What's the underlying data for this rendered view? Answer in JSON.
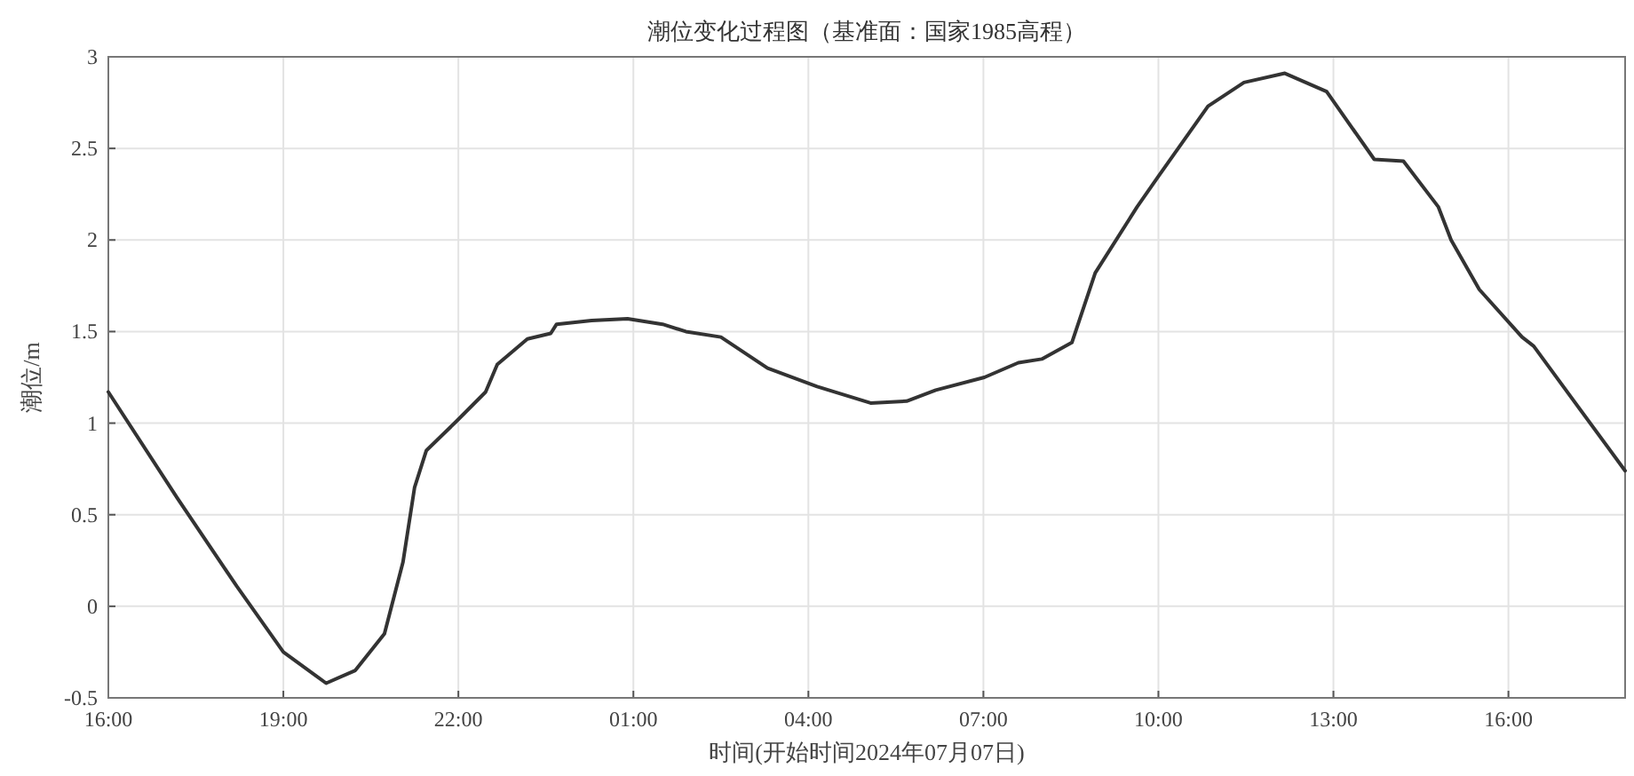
{
  "chart_data": {
    "type": "line",
    "title": "潮位变化过程图（基准面：国家1985高程）",
    "xlabel": "时间(开始时间2024年07月07日)",
    "ylabel": "潮位/m",
    "x": [
      "2024-07-07T16:00",
      "2024-07-07T17:11",
      "2024-07-07T18:12",
      "2024-07-07T19:00",
      "2024-07-07T19:44",
      "2024-07-07T20:14",
      "2024-07-07T20:44",
      "2024-07-07T21:03",
      "2024-07-07T21:15",
      "2024-07-07T21:27",
      "2024-07-07T21:58",
      "2024-07-07T22:28",
      "2024-07-07T22:40",
      "2024-07-07T23:11",
      "2024-07-07T23:35",
      "2024-07-07T23:41",
      "2024-07-08T00:17",
      "2024-07-08T00:54",
      "2024-07-08T01:30",
      "2024-07-08T01:54",
      "2024-07-08T02:30",
      "2024-07-08T03:18",
      "2024-07-08T04:09",
      "2024-07-08T05:04",
      "2024-07-08T05:41",
      "2024-07-08T06:11",
      "2024-07-08T07:01",
      "2024-07-08T07:36",
      "2024-07-08T08:00",
      "2024-07-08T08:31",
      "2024-07-08T08:55",
      "2024-07-08T09:38",
      "2024-07-08T09:59",
      "2024-07-08T10:51",
      "2024-07-08T11:28",
      "2024-07-08T12:10",
      "2024-07-08T12:53",
      "2024-07-08T13:42",
      "2024-07-08T14:12",
      "2024-07-08T14:48",
      "2024-07-08T15:01",
      "2024-07-08T15:30",
      "2024-07-08T16:14",
      "2024-07-08T16:26",
      "2024-07-08T18:00"
    ],
    "series": [
      {
        "color": "#333333",
        "values": [
          1.17,
          0.59,
          0.11,
          -0.25,
          -0.42,
          -0.35,
          -0.15,
          0.24,
          0.65,
          0.85,
          1.01,
          1.17,
          1.32,
          1.46,
          1.49,
          1.54,
          1.56,
          1.57,
          1.54,
          1.5,
          1.47,
          1.3,
          1.2,
          1.11,
          1.12,
          1.18,
          1.25,
          1.33,
          1.35,
          1.44,
          1.82,
          2.18,
          2.34,
          2.73,
          2.86,
          2.91,
          2.81,
          2.44,
          2.43,
          2.18,
          2.0,
          1.73,
          1.47,
          1.42,
          0.74
        ]
      }
    ],
    "xlim": [
      "2024-07-07T16:00",
      "2024-07-08T18:00"
    ],
    "ylim": [
      -0.5,
      3
    ],
    "xticks": [
      {
        "value": "2024-07-07T16:00",
        "label": "16:00"
      },
      {
        "value": "2024-07-07T19:00",
        "label": "19:00"
      },
      {
        "value": "2024-07-07T22:00",
        "label": "22:00"
      },
      {
        "value": "2024-07-08T01:00",
        "label": "01:00"
      },
      {
        "value": "2024-07-08T04:00",
        "label": "04:00"
      },
      {
        "value": "2024-07-08T07:00",
        "label": "07:00"
      },
      {
        "value": "2024-07-08T10:00",
        "label": "10:00"
      },
      {
        "value": "2024-07-08T13:00",
        "label": "13:00"
      },
      {
        "value": "2024-07-08T16:00",
        "label": "16:00"
      }
    ],
    "yticks": [
      -0.5,
      0,
      0.5,
      1,
      1.5,
      2,
      2.5,
      3
    ],
    "grid": true,
    "marker": "none",
    "line_style": "solid"
  }
}
